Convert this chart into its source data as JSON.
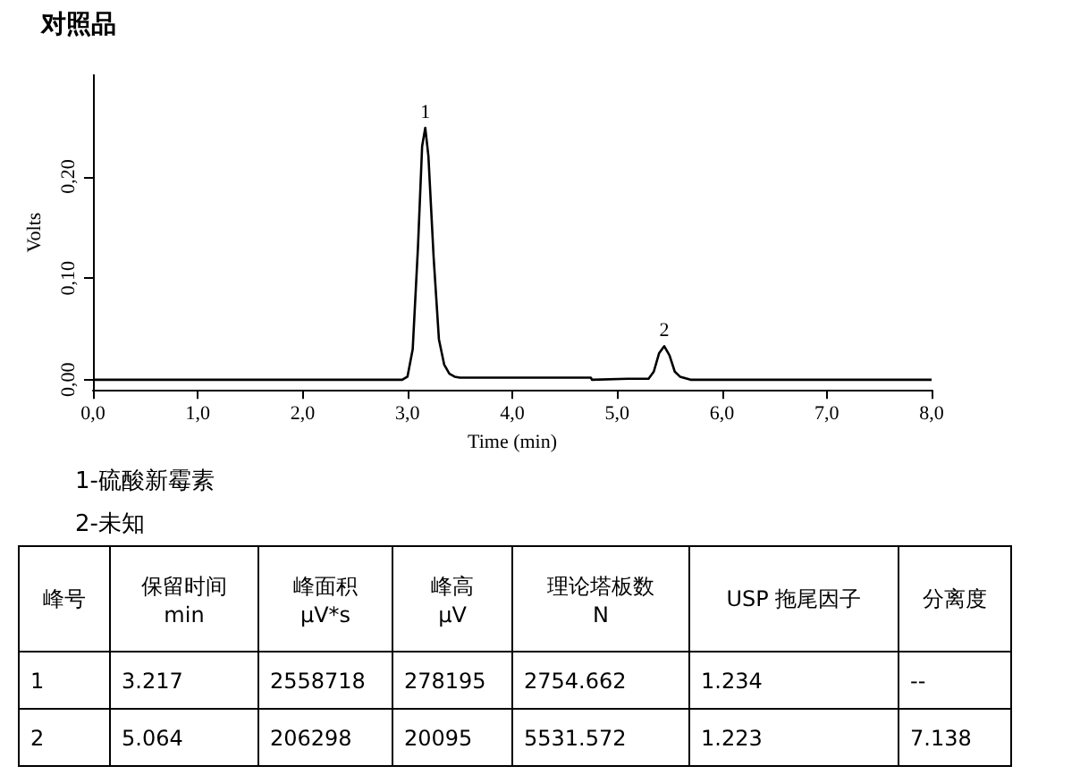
{
  "chart_data": {
    "type": "line",
    "title": "对照品",
    "xlabel": "Time (min)",
    "ylabel": "Volts",
    "x": [
      0,
      2.95,
      3.0,
      3.05,
      3.1,
      3.14,
      3.17,
      3.2,
      3.25,
      3.3,
      3.35,
      3.4,
      3.45,
      3.5,
      4.75,
      4.76,
      5.1,
      5.3,
      5.35,
      5.4,
      5.45,
      5.5,
      5.55,
      5.6,
      5.7,
      8.0
    ],
    "series": [
      {
        "color": "#000000",
        "values": [
          0,
          0,
          0.003,
          0.03,
          0.13,
          0.23,
          0.248,
          0.22,
          0.12,
          0.04,
          0.015,
          0.006,
          0.003,
          0.002,
          0.002,
          0,
          0.001,
          0.001,
          0.008,
          0.026,
          0.033,
          0.024,
          0.008,
          0.003,
          0,
          0
        ]
      }
    ],
    "xlim": [
      0,
      8
    ],
    "xticks": [
      {
        "value": 0,
        "label": "0,0"
      },
      {
        "value": 1,
        "label": "1,0"
      },
      {
        "value": 2,
        "label": "2,0"
      },
      {
        "value": 3,
        "label": "3,0"
      },
      {
        "value": 4,
        "label": "4,0"
      },
      {
        "value": 5,
        "label": "5,0"
      },
      {
        "value": 6,
        "label": "6,0"
      },
      {
        "value": 7,
        "label": "7,0"
      },
      {
        "value": 8,
        "label": "8,0"
      }
    ],
    "ylim": [
      -0.01,
      0.3
    ],
    "yticks": [
      {
        "value": 0,
        "label": "0,00"
      },
      {
        "value": 0.1,
        "label": "0,10"
      },
      {
        "value": 0.2,
        "label": "0,20"
      }
    ],
    "grid": false,
    "marker": "none",
    "annotations": [
      {
        "text": "1",
        "x": 3.17,
        "y": 0.248
      },
      {
        "text": "2",
        "x": 5.45,
        "y": 0.033
      },
      "1-硫酸新霉素",
      "2-未知",
      "峰号",
      "保留时间\nmin",
      "峰面积\nμV*s",
      "峰高\nμV",
      "理论塔板数\nN",
      "USP 拖尾因子",
      "分离度",
      "1",
      "3.217",
      "2558718",
      "278195",
      "2754.662",
      "1.234",
      "--",
      "2",
      "5.064",
      "206298",
      "20095",
      "5531.572",
      "1.223",
      "7.138"
    ]
  }
}
